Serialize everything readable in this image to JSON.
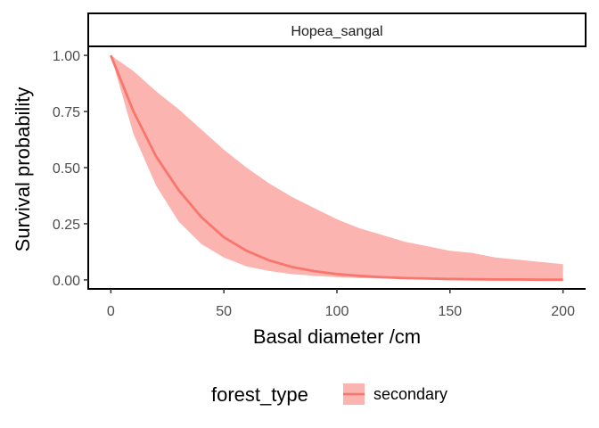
{
  "chart_data": {
    "type": "area",
    "facet_label": "Hopea_sangal",
    "xlabel": "Basal diameter /cm",
    "ylabel": "Survival probability",
    "xlim": [
      -10,
      210
    ],
    "ylim": [
      -0.04,
      1.04
    ],
    "x_ticks": [
      0,
      50,
      100,
      150,
      200
    ],
    "x_tick_labels": [
      "0",
      "50",
      "100",
      "150",
      "200"
    ],
    "y_ticks": [
      0,
      0.25,
      0.5,
      0.75,
      1
    ],
    "y_tick_labels": [
      "0.00",
      "0.25",
      "0.50",
      "0.75",
      "1.00"
    ],
    "grid": false,
    "legend": {
      "title": "forest_type",
      "position": "bottom",
      "entries": [
        "secondary"
      ]
    },
    "series": [
      {
        "name": "secondary",
        "color": "#F8766D",
        "ribbon_color": "#F8766D",
        "x": [
          0,
          10,
          20,
          30,
          40,
          50,
          60,
          70,
          80,
          90,
          100,
          110,
          120,
          130,
          140,
          150,
          160,
          170,
          180,
          190,
          200
        ],
        "y": [
          1.0,
          0.75,
          0.55,
          0.4,
          0.28,
          0.19,
          0.13,
          0.087,
          0.058,
          0.039,
          0.026,
          0.018,
          0.012,
          0.008,
          0.006,
          0.004,
          0.003,
          0.002,
          0.002,
          0.001,
          0.001
        ],
        "ymin": [
          1.0,
          0.65,
          0.42,
          0.26,
          0.16,
          0.1,
          0.06,
          0.04,
          0.026,
          0.018,
          0.012,
          0.008,
          0.006,
          0.004,
          0.003,
          0.002,
          0.002,
          0.001,
          0.001,
          0.001,
          0.0
        ],
        "ymax": [
          1.0,
          0.93,
          0.84,
          0.76,
          0.67,
          0.58,
          0.5,
          0.43,
          0.37,
          0.32,
          0.27,
          0.23,
          0.2,
          0.17,
          0.15,
          0.13,
          0.12,
          0.1,
          0.09,
          0.08,
          0.07
        ]
      }
    ]
  }
}
